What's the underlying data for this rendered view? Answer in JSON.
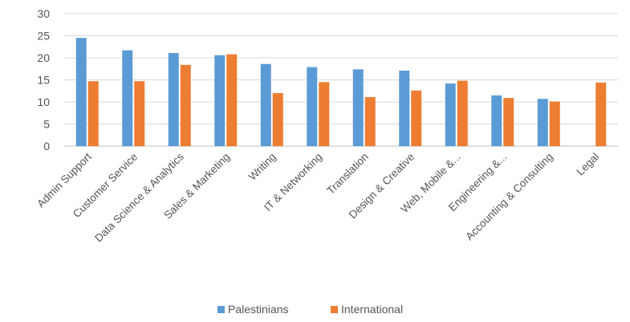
{
  "chart_data": {
    "type": "bar",
    "title": "",
    "xlabel": "",
    "ylabel": "",
    "ylim": [
      0,
      30
    ],
    "yticks": [
      0,
      5,
      10,
      15,
      20,
      25,
      30
    ],
    "grid": true,
    "legend_position": "bottom",
    "categories": [
      "Admin Support",
      "Customer Service",
      "Data Science & Analytics",
      "Sales & Marketing",
      "Writing",
      "IT & Networking",
      "Translation",
      "Design & Creative",
      "Web, Mobile &...",
      "Engineering &...",
      "Accounting & Consulting",
      "Legal"
    ],
    "series": [
      {
        "name": "Palestinians",
        "color": "#5B9BD5",
        "values": [
          24.5,
          21.7,
          21.1,
          20.6,
          18.6,
          17.9,
          17.4,
          17.1,
          14.2,
          11.5,
          10.7,
          null
        ]
      },
      {
        "name": "International",
        "color": "#ED7D31",
        "values": [
          14.7,
          14.7,
          18.4,
          20.8,
          12.0,
          14.5,
          11.1,
          12.6,
          14.8,
          10.9,
          10.1,
          14.4
        ]
      }
    ]
  }
}
